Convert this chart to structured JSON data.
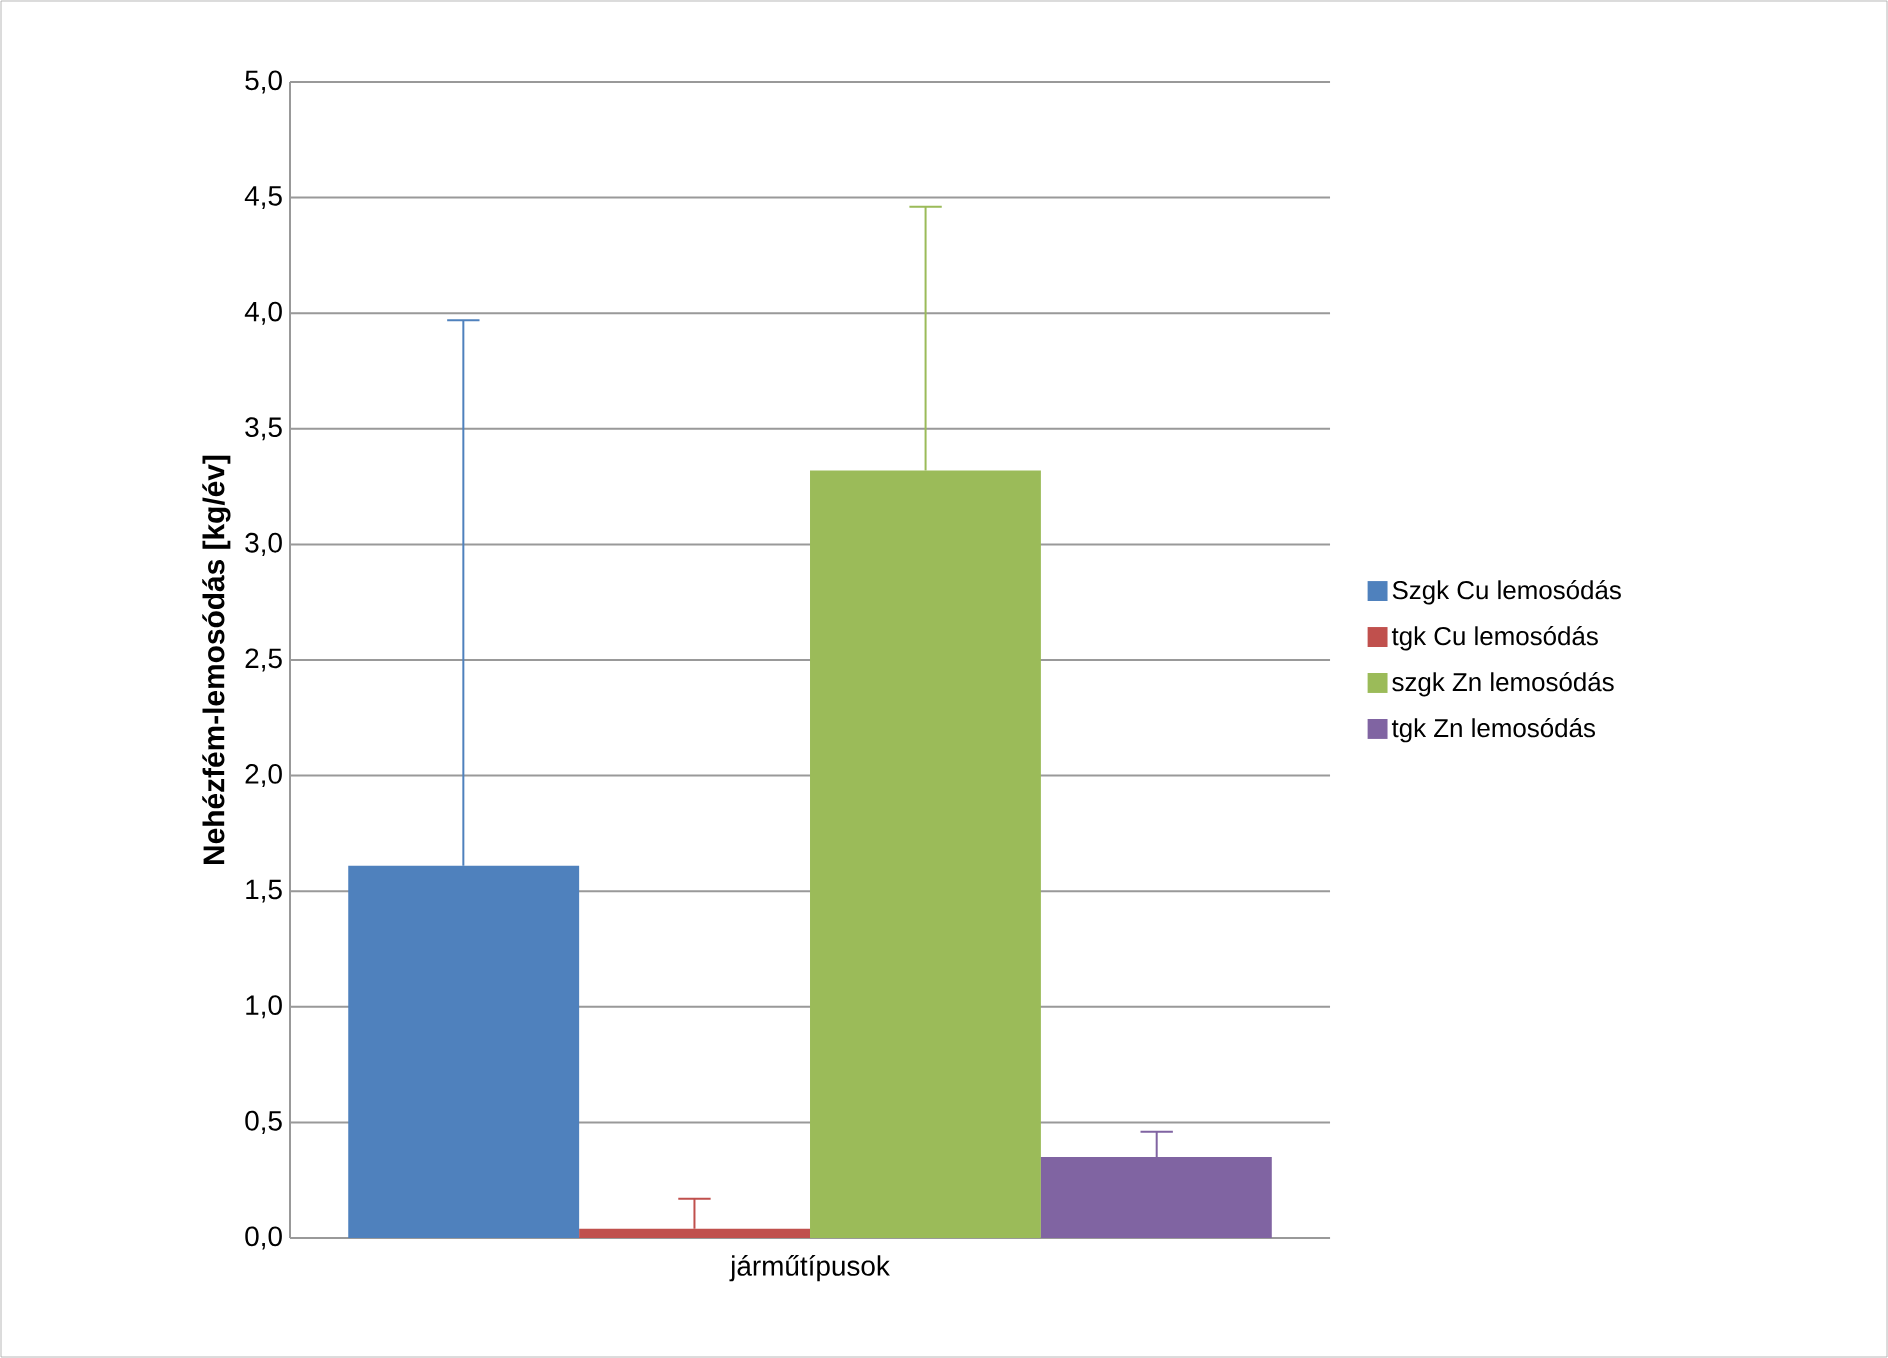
{
  "chart_data": {
    "type": "bar",
    "ylabel": "Nehézfém-lemosódás [kg/év]",
    "categories": [
      "járműtípusok"
    ],
    "series": [
      {
        "name": "Szgk Cu lemosódás",
        "color": "#4f81bd",
        "values": [
          1.61
        ],
        "errors": [
          [
            1.61,
            3.97
          ]
        ]
      },
      {
        "name": "tgk Cu lemosódás",
        "color": "#c0504d",
        "values": [
          0.04
        ],
        "errors": [
          [
            0.04,
            0.17
          ]
        ]
      },
      {
        "name": "szgk Zn lemosódás",
        "color": "#9bbb59",
        "values": [
          3.32
        ],
        "errors": [
          [
            3.32,
            4.46
          ]
        ]
      },
      {
        "name": "tgk Zn lemosódás",
        "color": "#8064a2",
        "values": [
          0.35
        ],
        "errors": [
          [
            0.35,
            0.46
          ]
        ]
      }
    ],
    "ylim": [
      0,
      5
    ],
    "yticks": [
      {
        "value": 0,
        "label": "0,0"
      },
      {
        "value": 0.5,
        "label": "0,5"
      },
      {
        "value": 1,
        "label": "1,0"
      },
      {
        "value": 1.5,
        "label": "1,5"
      },
      {
        "value": 2,
        "label": "2,0"
      },
      {
        "value": 2.5,
        "label": "2,5"
      },
      {
        "value": 3,
        "label": "3,0"
      },
      {
        "value": 3.5,
        "label": "3,5"
      },
      {
        "value": 4,
        "label": "4,0"
      },
      {
        "value": 4.5,
        "label": "4,5"
      },
      {
        "value": 5,
        "label": "5,0"
      }
    ],
    "grid": "y",
    "legend": "right"
  }
}
